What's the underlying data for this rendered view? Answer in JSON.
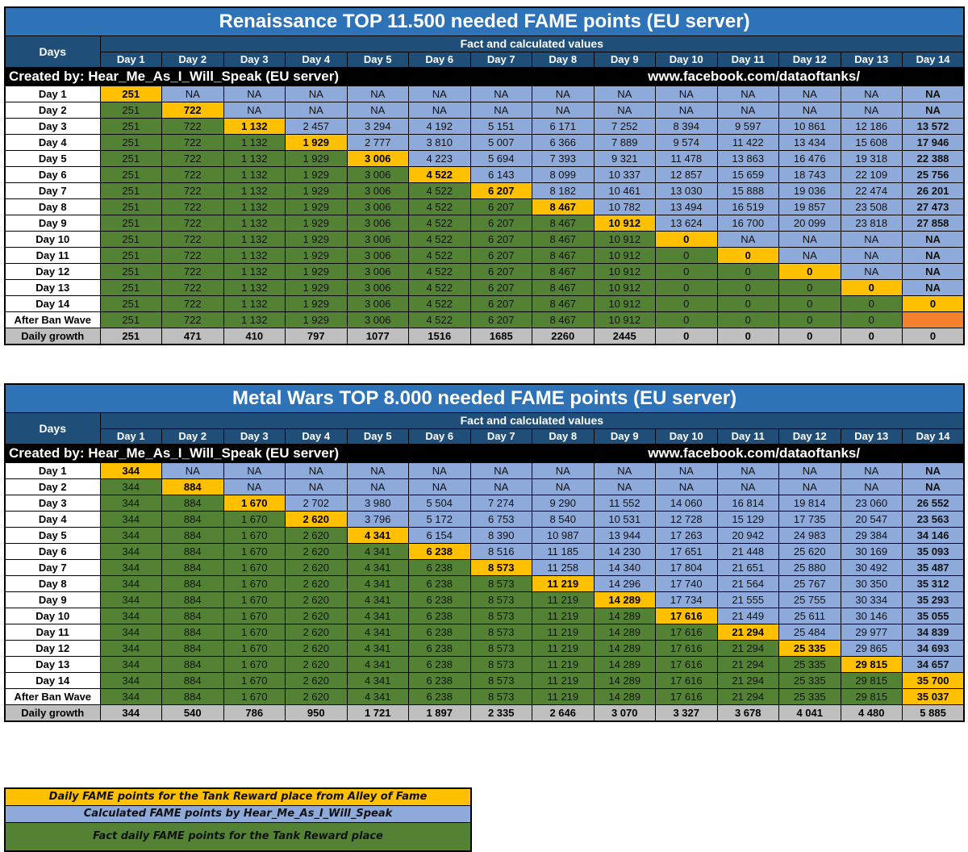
{
  "tables": [
    {
      "title": "Renaissance TOP 11.500 needed FAME points (EU server)",
      "days_label": "Days",
      "subheader": "Fact and calculated values",
      "columns": [
        "Day 1",
        "Day 2",
        "Day 3",
        "Day 4",
        "Day 5",
        "Day 6",
        "Day 7",
        "Day 8",
        "Day 9",
        "Day 10",
        "Day 11",
        "Day 12",
        "Day 13",
        "Day 14"
      ],
      "credit_left": "Created by: Hear_Me_As_I_Will_Speak (EU server)",
      "credit_right": "www.facebook.com/dataoftanks/",
      "rows": [
        {
          "label": "Day 1",
          "cells": [
            "251",
            "NA",
            "NA",
            "NA",
            "NA",
            "NA",
            "NA",
            "NA",
            "NA",
            "NA",
            "NA",
            "NA",
            "NA",
            "NA"
          ]
        },
        {
          "label": "Day 2",
          "cells": [
            "251",
            "722",
            "NA",
            "NA",
            "NA",
            "NA",
            "NA",
            "NA",
            "NA",
            "NA",
            "NA",
            "NA",
            "NA",
            "NA"
          ]
        },
        {
          "label": "Day 3",
          "cells": [
            "251",
            "722",
            "1 132",
            "2 457",
            "3 294",
            "4 192",
            "5 151",
            "6 171",
            "7 252",
            "8 394",
            "9 597",
            "10 861",
            "12 186",
            "13 572"
          ]
        },
        {
          "label": "Day 4",
          "cells": [
            "251",
            "722",
            "1 132",
            "1 929",
            "2 777",
            "3 810",
            "5 007",
            "6 366",
            "7 889",
            "9 574",
            "11 422",
            "13 434",
            "15 608",
            "17 946"
          ]
        },
        {
          "label": "Day 5",
          "cells": [
            "251",
            "722",
            "1 132",
            "1 929",
            "3 006",
            "4 223",
            "5 694",
            "7 393",
            "9 321",
            "11 478",
            "13 863",
            "16 476",
            "19 318",
            "22 388"
          ]
        },
        {
          "label": "Day 6",
          "cells": [
            "251",
            "722",
            "1 132",
            "1 929",
            "3 006",
            "4 522",
            "6 143",
            "8 099",
            "10 337",
            "12 857",
            "15 659",
            "18 743",
            "22 109",
            "25 756"
          ]
        },
        {
          "label": "Day 7",
          "cells": [
            "251",
            "722",
            "1 132",
            "1 929",
            "3 006",
            "4 522",
            "6 207",
            "8 182",
            "10 461",
            "13 030",
            "15 888",
            "19 036",
            "22 474",
            "26 201"
          ]
        },
        {
          "label": "Day 8",
          "cells": [
            "251",
            "722",
            "1 132",
            "1 929",
            "3 006",
            "4 522",
            "6 207",
            "8 467",
            "10 782",
            "13 494",
            "16 519",
            "19 857",
            "23 508",
            "27 473"
          ]
        },
        {
          "label": "Day 9",
          "cells": [
            "251",
            "722",
            "1 132",
            "1 929",
            "3 006",
            "4 522",
            "6 207",
            "8 467",
            "10 912",
            "13 624",
            "16 700",
            "20 099",
            "23 818",
            "27 858"
          ]
        },
        {
          "label": "Day 10",
          "cells": [
            "251",
            "722",
            "1 132",
            "1 929",
            "3 006",
            "4 522",
            "6 207",
            "8 467",
            "10 912",
            "0",
            "NA",
            "NA",
            "NA",
            "NA"
          ]
        },
        {
          "label": "Day 11",
          "cells": [
            "251",
            "722",
            "1 132",
            "1 929",
            "3 006",
            "4 522",
            "6 207",
            "8 467",
            "10 912",
            "0",
            "0",
            "NA",
            "NA",
            "NA"
          ]
        },
        {
          "label": "Day 12",
          "cells": [
            "251",
            "722",
            "1 132",
            "1 929",
            "3 006",
            "4 522",
            "6 207",
            "8 467",
            "10 912",
            "0",
            "0",
            "0",
            "NA",
            "NA"
          ]
        },
        {
          "label": "Day 13",
          "cells": [
            "251",
            "722",
            "1 132",
            "1 929",
            "3 006",
            "4 522",
            "6 207",
            "8 467",
            "10 912",
            "0",
            "0",
            "0",
            "0",
            "NA"
          ]
        },
        {
          "label": "Day 14",
          "cells": [
            "251",
            "722",
            "1 132",
            "1 929",
            "3 006",
            "4 522",
            "6 207",
            "8 467",
            "10 912",
            "0",
            "0",
            "0",
            "0",
            "0"
          ]
        },
        {
          "label": "After Ban Wave",
          "cells": [
            "251",
            "722",
            "1 132",
            "1 929",
            "3 006",
            "4 522",
            "6 207",
            "8 467",
            "10 912",
            "0",
            "0",
            "0",
            "0",
            ""
          ]
        }
      ],
      "growth": {
        "label": "Daily growth",
        "cells": [
          "251",
          "471",
          "410",
          "797",
          "1077",
          "1516",
          "1685",
          "2260",
          "2445",
          "0",
          "0",
          "0",
          "0",
          "0"
        ]
      }
    },
    {
      "title": "Metal Wars TOP 8.000 needed FAME points (EU server)",
      "days_label": "Days",
      "subheader": "Fact and calculated values",
      "columns": [
        "Day 1",
        "Day 2",
        "Day 3",
        "Day 4",
        "Day 5",
        "Day 6",
        "Day 7",
        "Day 8",
        "Day 9",
        "Day 10",
        "Day 11",
        "Day 12",
        "Day 13",
        "Day 14"
      ],
      "credit_left": "Created by: Hear_Me_As_I_Will_Speak (EU server)",
      "credit_right": "www.facebook.com/dataoftanks/",
      "rows": [
        {
          "label": "Day 1",
          "cells": [
            "344",
            "NA",
            "NA",
            "NA",
            "NA",
            "NA",
            "NA",
            "NA",
            "NA",
            "NA",
            "NA",
            "NA",
            "NA",
            "NA"
          ]
        },
        {
          "label": "Day 2",
          "cells": [
            "344",
            "884",
            "NA",
            "NA",
            "NA",
            "NA",
            "NA",
            "NA",
            "NA",
            "NA",
            "NA",
            "NA",
            "NA",
            "NA"
          ]
        },
        {
          "label": "Day 3",
          "cells": [
            "344",
            "884",
            "1 670",
            "2 702",
            "3 980",
            "5 504",
            "7 274",
            "9 290",
            "11 552",
            "14 060",
            "16 814",
            "19 814",
            "23 060",
            "26 552"
          ]
        },
        {
          "label": "Day 4",
          "cells": [
            "344",
            "884",
            "1 670",
            "2 620",
            "3 796",
            "5 172",
            "6 753",
            "8 540",
            "10 531",
            "12 728",
            "15 129",
            "17 735",
            "20 547",
            "23 563"
          ]
        },
        {
          "label": "Day 5",
          "cells": [
            "344",
            "884",
            "1 670",
            "2 620",
            "4 341",
            "6 154",
            "8 390",
            "10 987",
            "13 944",
            "17 263",
            "20 942",
            "24 983",
            "29 384",
            "34 146"
          ]
        },
        {
          "label": "Day 6",
          "cells": [
            "344",
            "884",
            "1 670",
            "2 620",
            "4 341",
            "6 238",
            "8 516",
            "11 185",
            "14 230",
            "17 651",
            "21 448",
            "25 620",
            "30 169",
            "35 093"
          ]
        },
        {
          "label": "Day 7",
          "cells": [
            "344",
            "884",
            "1 670",
            "2 620",
            "4 341",
            "6 238",
            "8 573",
            "11 258",
            "14 340",
            "17 804",
            "21 651",
            "25 880",
            "30 492",
            "35 487"
          ]
        },
        {
          "label": "Day 8",
          "cells": [
            "344",
            "884",
            "1 670",
            "2 620",
            "4 341",
            "6 238",
            "8 573",
            "11 219",
            "14 296",
            "17 740",
            "21 564",
            "25 767",
            "30 350",
            "35 312"
          ]
        },
        {
          "label": "Day 9",
          "cells": [
            "344",
            "884",
            "1 670",
            "2 620",
            "4 341",
            "6 238",
            "8 573",
            "11 219",
            "14 289",
            "17 734",
            "21 555",
            "25 755",
            "30 334",
            "35 293"
          ]
        },
        {
          "label": "Day 10",
          "cells": [
            "344",
            "884",
            "1 670",
            "2 620",
            "4 341",
            "6 238",
            "8 573",
            "11 219",
            "14 289",
            "17 616",
            "21 449",
            "25 611",
            "30 146",
            "35 055"
          ]
        },
        {
          "label": "Day 11",
          "cells": [
            "344",
            "884",
            "1 670",
            "2 620",
            "4 341",
            "6 238",
            "8 573",
            "11 219",
            "14 289",
            "17 616",
            "21 294",
            "25 484",
            "29 977",
            "34 839"
          ]
        },
        {
          "label": "Day 12",
          "cells": [
            "344",
            "884",
            "1 670",
            "2 620",
            "4 341",
            "6 238",
            "8 573",
            "11 219",
            "14 289",
            "17 616",
            "21 294",
            "25 335",
            "29 865",
            "34 693"
          ]
        },
        {
          "label": "Day 13",
          "cells": [
            "344",
            "884",
            "1 670",
            "2 620",
            "4 341",
            "6 238",
            "8 573",
            "11 219",
            "14 289",
            "17 616",
            "21 294",
            "25 335",
            "29 815",
            "34 657"
          ]
        },
        {
          "label": "Day 14",
          "cells": [
            "344",
            "884",
            "1 670",
            "2 620",
            "4 341",
            "6 238",
            "8 573",
            "11 219",
            "14 289",
            "17 616",
            "21 294",
            "25 335",
            "29 815",
            "35 700"
          ]
        },
        {
          "label": "After Ban Wave",
          "cells": [
            "344",
            "884",
            "1 670",
            "2 620",
            "4 341",
            "6 238",
            "8 573",
            "11 219",
            "14 289",
            "17 616",
            "21 294",
            "25 335",
            "29 815",
            "35 037"
          ]
        }
      ],
      "growth": {
        "label": "Daily growth",
        "cells": [
          "344",
          "540",
          "786",
          "950",
          "1 721",
          "1 897",
          "2 335",
          "2 646",
          "3 070",
          "3 327",
          "3 678",
          "4 041",
          "4 480",
          "5 885"
        ]
      }
    }
  ],
  "legend": {
    "yellow": "Daily FAME points for the Tank Reward place from Alley of Fame",
    "blue": "Calculated FAME points by Hear_Me_As_I_Will_Speak",
    "green": "Fact daily FAME points for the Tank Reward place"
  },
  "colors": {
    "yellow": "#ffc000",
    "blue": "#8eaadb",
    "green": "#548235",
    "orange": "#f4822d",
    "header": "#1f4e79",
    "title": "#2e73b8"
  }
}
